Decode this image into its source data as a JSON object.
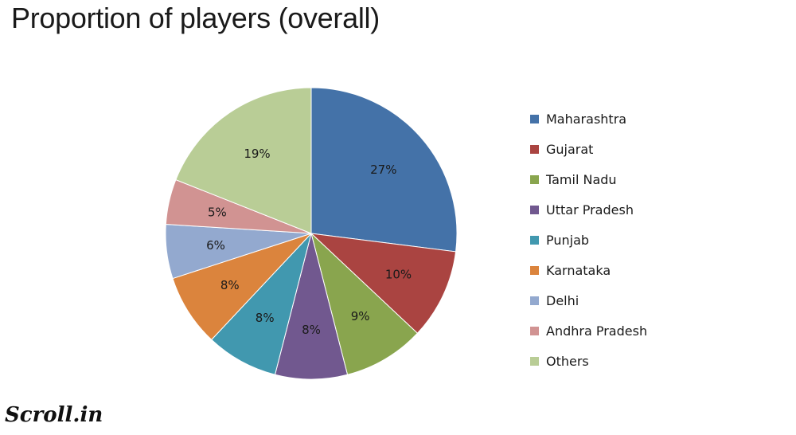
{
  "title": "Proportion of players (overall)",
  "logo_text": "Scroll.in",
  "chart_data": {
    "type": "pie",
    "title": "Proportion of players (overall)",
    "legend_position": "right",
    "slices": [
      {
        "label": "Maharashtra",
        "value": 27,
        "value_label": "27%",
        "color": "#4472A8"
      },
      {
        "label": "Gujarat",
        "value": 10,
        "value_label": "10%",
        "color": "#AA4441"
      },
      {
        "label": "Tamil Nadu",
        "value": 9,
        "value_label": "9%",
        "color": "#89A54E"
      },
      {
        "label": "Uttar Pradesh",
        "value": 8,
        "value_label": "8%",
        "color": "#71588F"
      },
      {
        "label": "Punjab",
        "value": 8,
        "value_label": "8%",
        "color": "#4198AF"
      },
      {
        "label": "Karnataka",
        "value": 8,
        "value_label": "8%",
        "color": "#DB843D"
      },
      {
        "label": "Delhi",
        "value": 6,
        "value_label": "6%",
        "color": "#93A9CF"
      },
      {
        "label": "Andhra Pradesh",
        "value": 5,
        "value_label": "5%",
        "color": "#D19392"
      },
      {
        "label": "Others",
        "value": 19,
        "value_label": "19%",
        "color": "#B9CD96"
      }
    ]
  }
}
